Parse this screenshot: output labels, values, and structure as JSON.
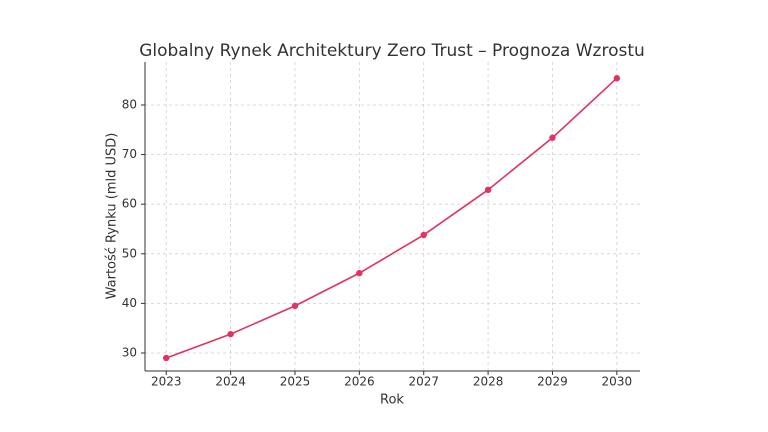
{
  "chart_data": {
    "type": "line",
    "title": "Globalny Rynek Architektury Zero Trust – Prognoza Wzrostu",
    "xlabel": "Rok",
    "ylabel": "Wartość Rynku (mld USD)",
    "x": [
      2023,
      2024,
      2025,
      2026,
      2027,
      2028,
      2029,
      2030
    ],
    "series": [
      {
        "name": "Wartość Rynku",
        "color": "#e0335f",
        "values": [
          29.0,
          33.8,
          39.5,
          46.1,
          53.8,
          62.9,
          73.4,
          85.4
        ]
      }
    ],
    "xlim": [
      2022.67,
      2030.36
    ],
    "xticks": [
      2023,
      2024,
      2025,
      2026,
      2027,
      2028,
      2029,
      2030
    ],
    "ylim": [
      26.37,
      88.67
    ],
    "yticks": [
      30,
      40,
      50,
      60,
      70,
      80
    ],
    "grid": true
  }
}
